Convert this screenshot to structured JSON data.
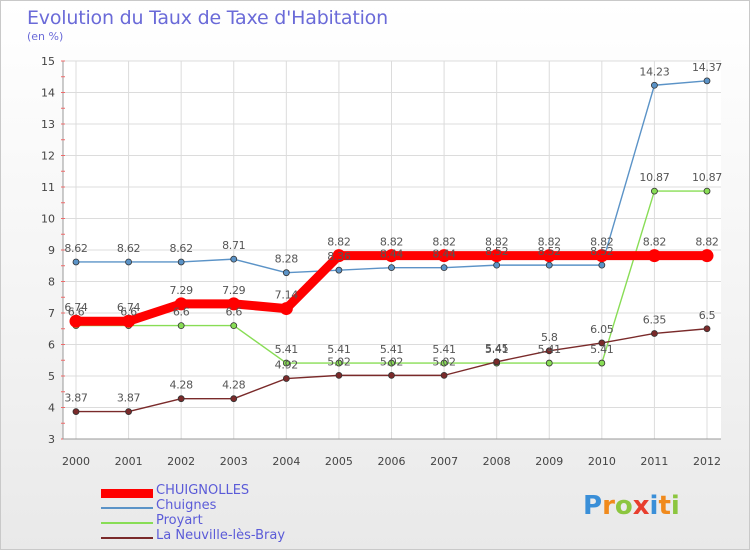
{
  "header": {
    "title": "Evolution du Taux de Taxe d'Habitation",
    "subtitle": "(en %)"
  },
  "chart_data": {
    "type": "line",
    "title": "Evolution du Taux de Taxe d'Habitation",
    "subtitle": "(en %)",
    "xlabel": "",
    "ylabel": "",
    "x": [
      2000,
      2001,
      2002,
      2003,
      2004,
      2005,
      2006,
      2007,
      2008,
      2009,
      2010,
      2011,
      2012
    ],
    "ylim": [
      3,
      15
    ],
    "yticks": [
      3,
      4,
      5,
      6,
      7,
      8,
      9,
      10,
      11,
      12,
      13,
      14,
      15
    ],
    "grid": true,
    "legend_position": "bottom-left",
    "series": [
      {
        "name": "CHUIGNOLLES",
        "color": "#ff0000",
        "values": [
          6.74,
          6.74,
          7.29,
          7.29,
          7.14,
          8.82,
          8.82,
          8.82,
          8.82,
          8.82,
          8.82,
          8.82,
          8.82
        ],
        "labels": [
          "6.74",
          "6.74",
          "7.29",
          "7.29",
          "7.14",
          "8.82",
          "8.82",
          "8.82",
          "8.82",
          "8.82",
          "8.82",
          "8.82",
          "8.82"
        ]
      },
      {
        "name": "Chuignes",
        "color": "#5b93c7",
        "values": [
          8.62,
          8.62,
          8.62,
          8.71,
          8.28,
          8.36,
          8.44,
          8.44,
          8.52,
          8.52,
          8.52,
          14.23,
          14.37
        ],
        "labels": [
          "8.62",
          "8.62",
          "8.62",
          "8.71",
          "8.28",
          "8.36",
          "8.44",
          "8.44",
          "8.52",
          "8.52",
          "8.52",
          "14.23",
          "14.37"
        ]
      },
      {
        "name": "Proyart",
        "color": "#88dd55",
        "values": [
          6.6,
          6.6,
          6.6,
          6.6,
          5.41,
          5.41,
          5.41,
          5.41,
          5.41,
          5.41,
          5.41,
          10.87,
          10.87
        ],
        "labels": [
          "6.6",
          "6.6",
          "6.6",
          "6.6",
          "5.41",
          "5.41",
          "5.41",
          "5.41",
          "5.41",
          "5.41",
          "5.41",
          "10.87",
          "10.87"
        ]
      },
      {
        "name": "La Neuville-lès-Bray",
        "color": "#7a2a2a",
        "values": [
          3.87,
          3.87,
          4.28,
          4.28,
          4.92,
          5.02,
          5.02,
          5.02,
          5.45,
          5.8,
          6.05,
          6.35,
          6.5
        ],
        "labels": [
          "3.87",
          "3.87",
          "4.28",
          "4.28",
          "4.92",
          "5.02",
          "5.02",
          "5.02",
          "5.45",
          "5.8",
          "6.05",
          "6.35",
          "6.5"
        ]
      }
    ]
  },
  "logo": {
    "letters": [
      "P",
      "r",
      "o",
      "x",
      "i",
      "t",
      "i"
    ],
    "colors": [
      "#3a8fd8",
      "#f08a1c",
      "#8cc63f",
      "#e83e2e",
      "#3a8fd8",
      "#f08a1c",
      "#8cc63f"
    ]
  }
}
